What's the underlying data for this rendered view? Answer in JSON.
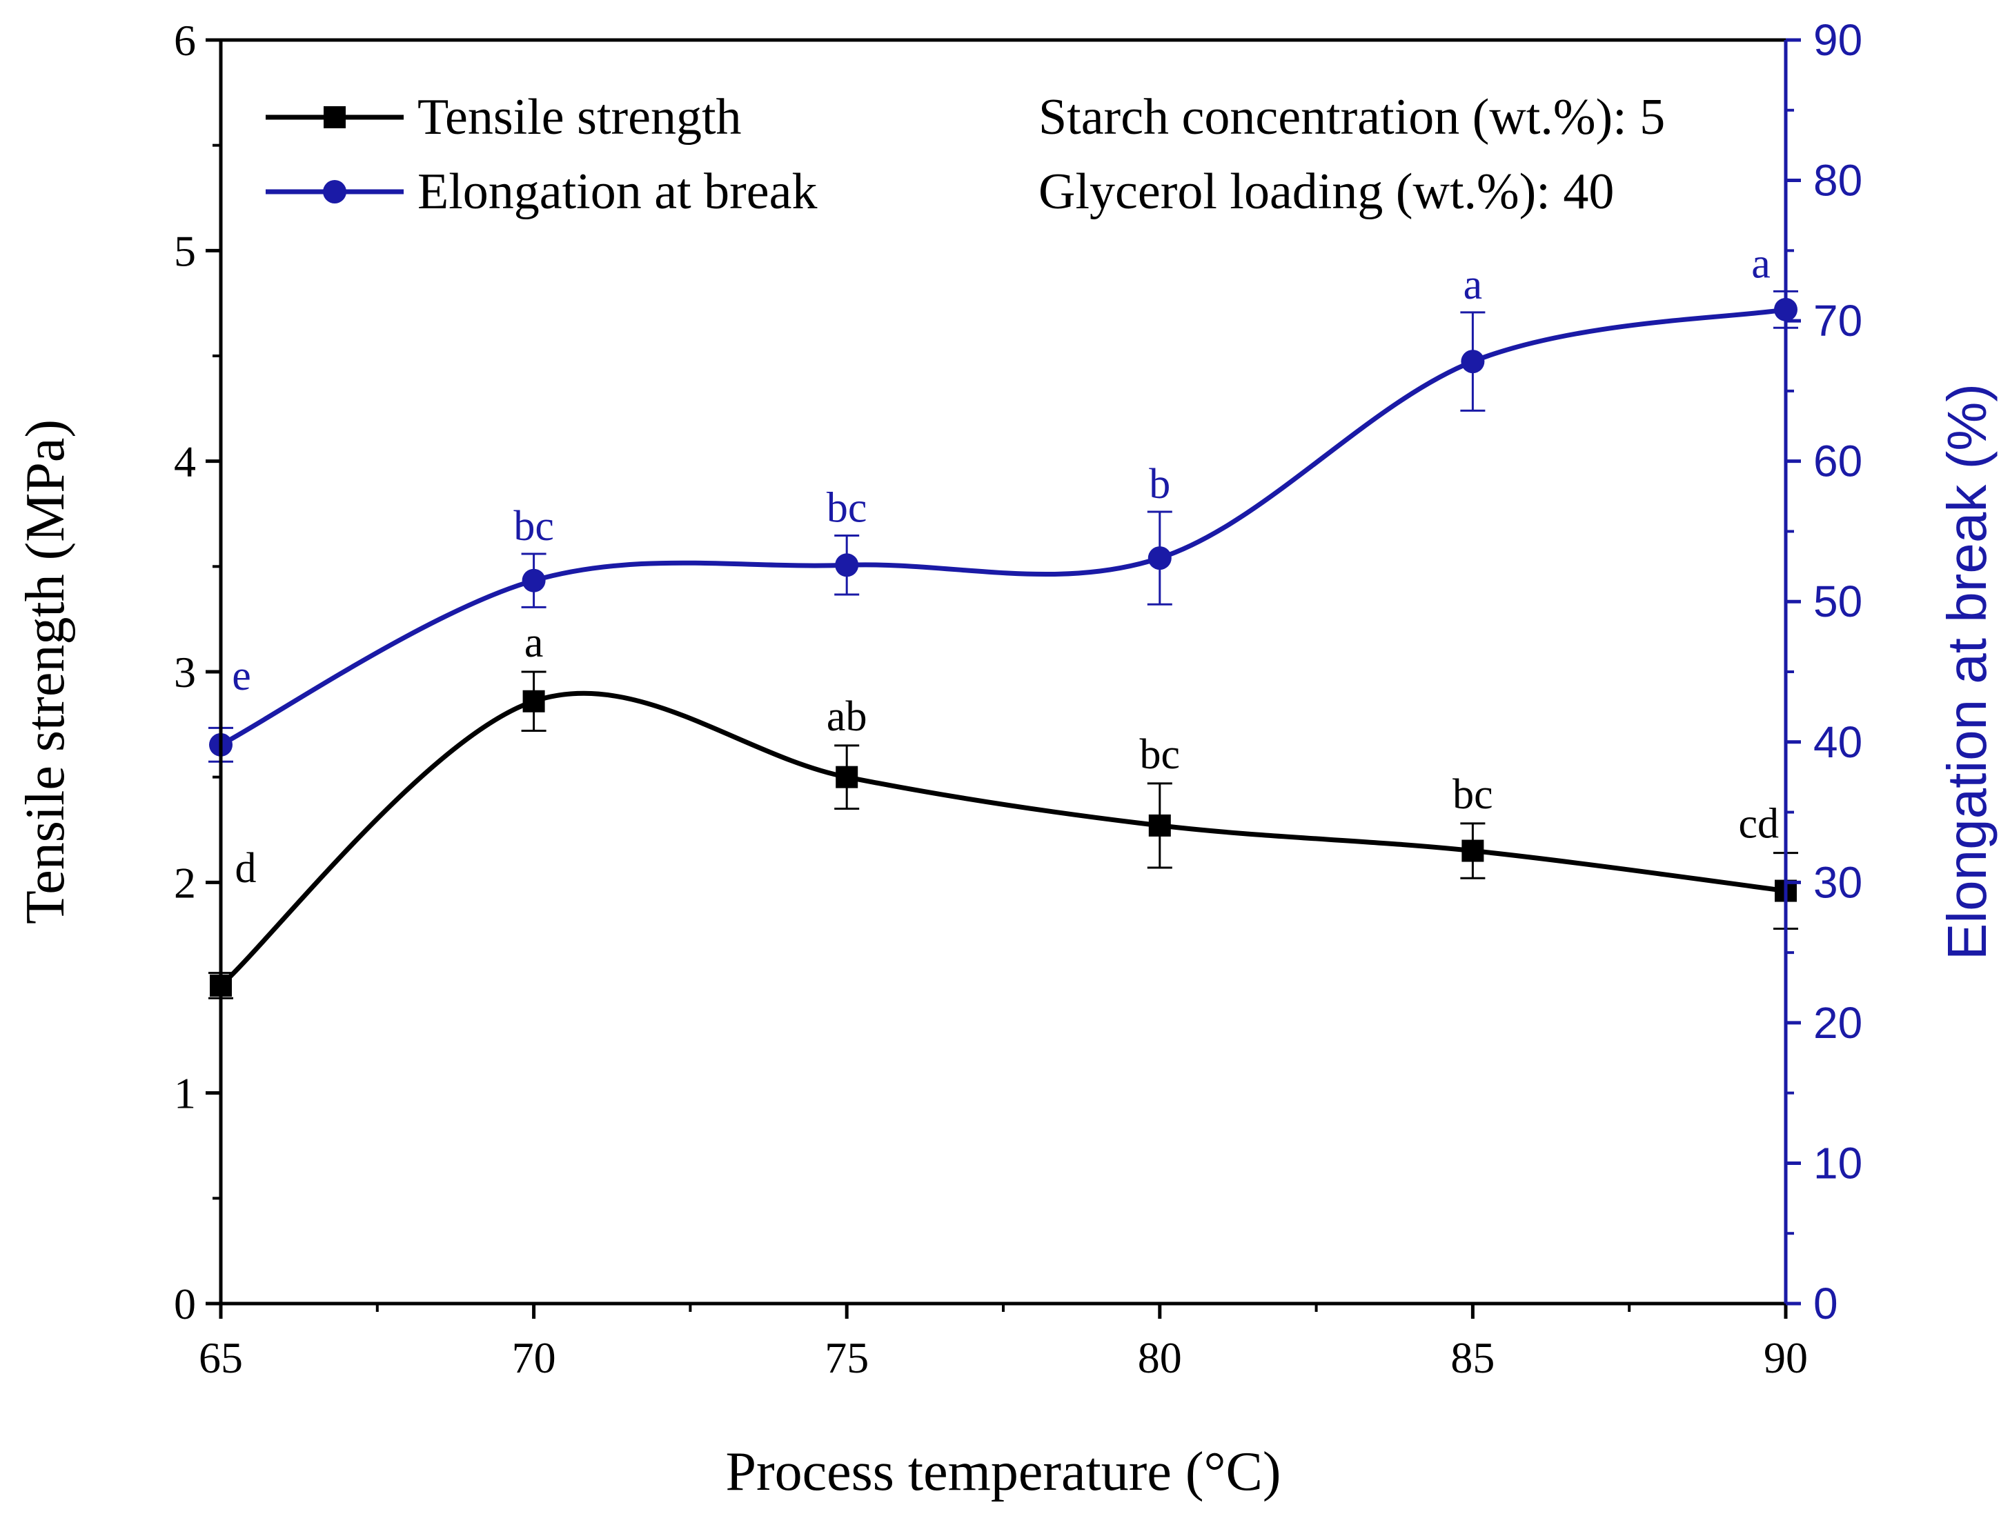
{
  "chart_data": {
    "type": "line",
    "x_axis": {
      "label": "Process temperature (°C)",
      "range": [
        65,
        90
      ],
      "ticks": [
        65,
        70,
        75,
        80,
        85,
        90
      ],
      "tick_labels": [
        "65",
        "70",
        "75",
        "80",
        "85",
        "90"
      ]
    },
    "y_axis_left": {
      "label": "Tensile strength (MPa)",
      "range": [
        0,
        6
      ],
      "ticks": [
        0,
        1,
        2,
        3,
        4,
        5,
        6
      ],
      "tick_labels": [
        "0",
        "1",
        "2",
        "3",
        "4",
        "5",
        "6"
      ],
      "color": "#000000"
    },
    "y_axis_right": {
      "label": "Elongation at break (%)",
      "range": [
        0,
        90
      ],
      "ticks": [
        0,
        10,
        20,
        30,
        40,
        50,
        60,
        70,
        80,
        90
      ],
      "tick_labels": [
        "0",
        "10",
        "20",
        "30",
        "40",
        "50",
        "60",
        "70",
        "80",
        "90"
      ],
      "color": "#1a1aa6"
    },
    "series": [
      {
        "name": "Tensile strength",
        "axis": "left",
        "marker": "square",
        "color": "#000000",
        "x": [
          65,
          70,
          75,
          80,
          85,
          90
        ],
        "y": [
          1.51,
          2.86,
          2.5,
          2.27,
          2.15,
          1.96
        ],
        "err": [
          0.06,
          0.14,
          0.15,
          0.2,
          0.13,
          0.18
        ],
        "letters": [
          "d",
          "a",
          "ab",
          "bc",
          "bc",
          "cd"
        ]
      },
      {
        "name": "Elongation at break",
        "axis": "right",
        "marker": "circle",
        "color": "#1a1aa6",
        "x": [
          65,
          70,
          75,
          80,
          85,
          90
        ],
        "y": [
          39.8,
          51.5,
          52.6,
          53.1,
          67.1,
          70.8
        ],
        "err": [
          1.2,
          1.9,
          2.1,
          3.3,
          3.5,
          1.3
        ],
        "letters": [
          "e",
          "bc",
          "bc",
          "b",
          "a",
          "a"
        ]
      }
    ],
    "legend_position": "top-left",
    "annotations": {
      "starch": "Starch concentration (wt.%): 5",
      "glycerol": "Glycerol loading (wt.%): 40"
    },
    "grid": false
  }
}
